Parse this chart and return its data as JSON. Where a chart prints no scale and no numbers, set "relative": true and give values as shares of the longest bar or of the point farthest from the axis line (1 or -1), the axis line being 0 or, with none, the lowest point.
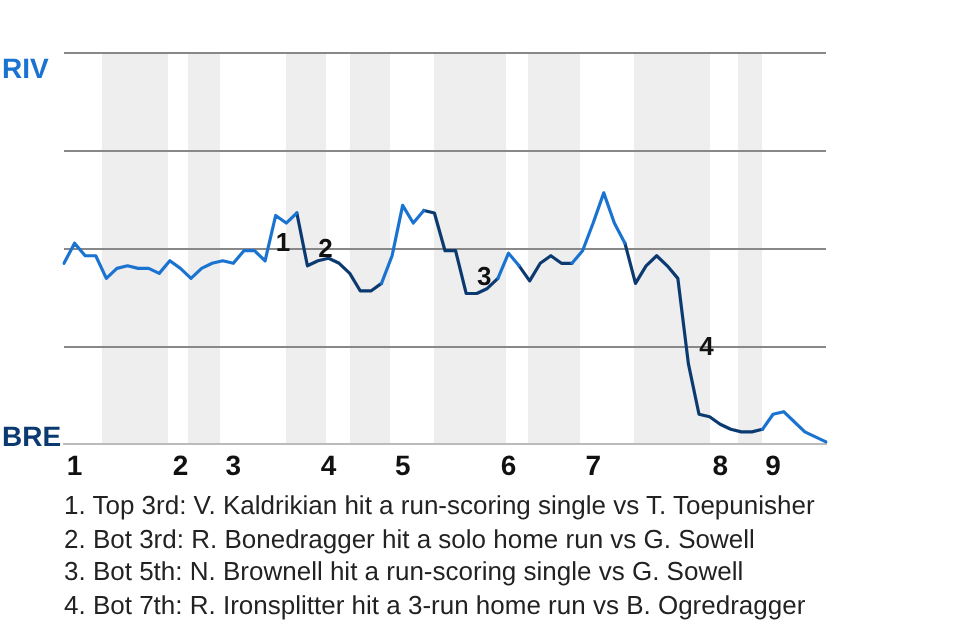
{
  "chart_data": {
    "type": "line",
    "relative": true,
    "categories": [
      null,
      "1",
      null,
      null,
      null,
      null,
      null,
      null,
      null,
      null,
      null,
      "2",
      null,
      null,
      null,
      null,
      "3",
      null,
      null,
      null,
      null,
      null,
      null,
      null,
      null,
      "4",
      null,
      null,
      null,
      null,
      null,
      null,
      "5",
      null,
      null,
      null,
      null,
      null,
      null,
      null,
      null,
      null,
      "6",
      null,
      null,
      null,
      null,
      null,
      null,
      null,
      "7",
      null,
      null,
      null,
      null,
      null,
      null,
      null,
      null,
      null,
      null,
      null,
      "8",
      null,
      null,
      null,
      null,
      "9",
      null,
      null,
      null,
      null,
      null
    ],
    "series": [
      {
        "color": "#1a73d1",
        "values": [
          0.72,
          0.8,
          0.75,
          0.75,
          0.66,
          0.7,
          0.71,
          0.7,
          0.7,
          0.68,
          0.73,
          0.7,
          0.66,
          0.7,
          0.72,
          0.73,
          0.72,
          0.77,
          0.77,
          0.73,
          0.91,
          0.88,
          0.92,
          null,
          null,
          null,
          null,
          null,
          null,
          null,
          0.64,
          0.75,
          0.95,
          0.88,
          0.93,
          null,
          null,
          null,
          null,
          null,
          null,
          0.66,
          0.76,
          0.71,
          null,
          null,
          null,
          null,
          0.72,
          0.77,
          0.88,
          1,
          0.88,
          0.8,
          null,
          null,
          null,
          null,
          null,
          null,
          null,
          null,
          null,
          null,
          null,
          null,
          0.06,
          0.12,
          0.13,
          0.09,
          0.05,
          0.03,
          0.01
        ]
      },
      {
        "color": "#0b3a70",
        "values": [
          null,
          null,
          null,
          null,
          null,
          null,
          null,
          null,
          null,
          null,
          null,
          null,
          null,
          null,
          null,
          null,
          null,
          null,
          null,
          null,
          null,
          null,
          0.92,
          0.71,
          0.73,
          0.74,
          0.72,
          0.68,
          0.61,
          0.61,
          0.64,
          null,
          null,
          null,
          0.93,
          0.92,
          0.77,
          0.77,
          0.6,
          0.6,
          0.62,
          0.66,
          null,
          0.71,
          0.65,
          0.72,
          0.75,
          0.72,
          0.72,
          null,
          null,
          null,
          null,
          0.8,
          0.64,
          0.71,
          0.75,
          0.71,
          0.66,
          0.32,
          0.12,
          0.11,
          0.08,
          0.06,
          0.05,
          0.05,
          0.06,
          null,
          null,
          null,
          null,
          null,
          null
        ]
      }
    ],
    "marker": "none",
    "line_style": "solid",
    "ref_lines": [
      {
        "axis": "y",
        "value": 0.39,
        "color": "#888888"
      },
      {
        "axis": "y",
        "value": 0.78,
        "color": "#888888"
      },
      {
        "axis": "y",
        "value": 1.17,
        "color": "#888888"
      },
      {
        "axis": "y",
        "value": 1.56,
        "color": "#888888"
      }
    ],
    "annotations": [
      "RIV",
      "BRE",
      "1",
      "2",
      "3",
      "4",
      "1. Top 3rd: V. Kaldrikian hit a run-scoring single vs T. Toepunisher",
      "2. Bot 3rd: R. Bonedragger hit a solo home run vs G. Sowell",
      "3. Bot 5th: N. Brownell hit a run-scoring single vs G. Sowell",
      "4. Bot 7th: R. Ironsplitter hit a 3-run home run vs B. Ogredragger"
    ]
  }
}
